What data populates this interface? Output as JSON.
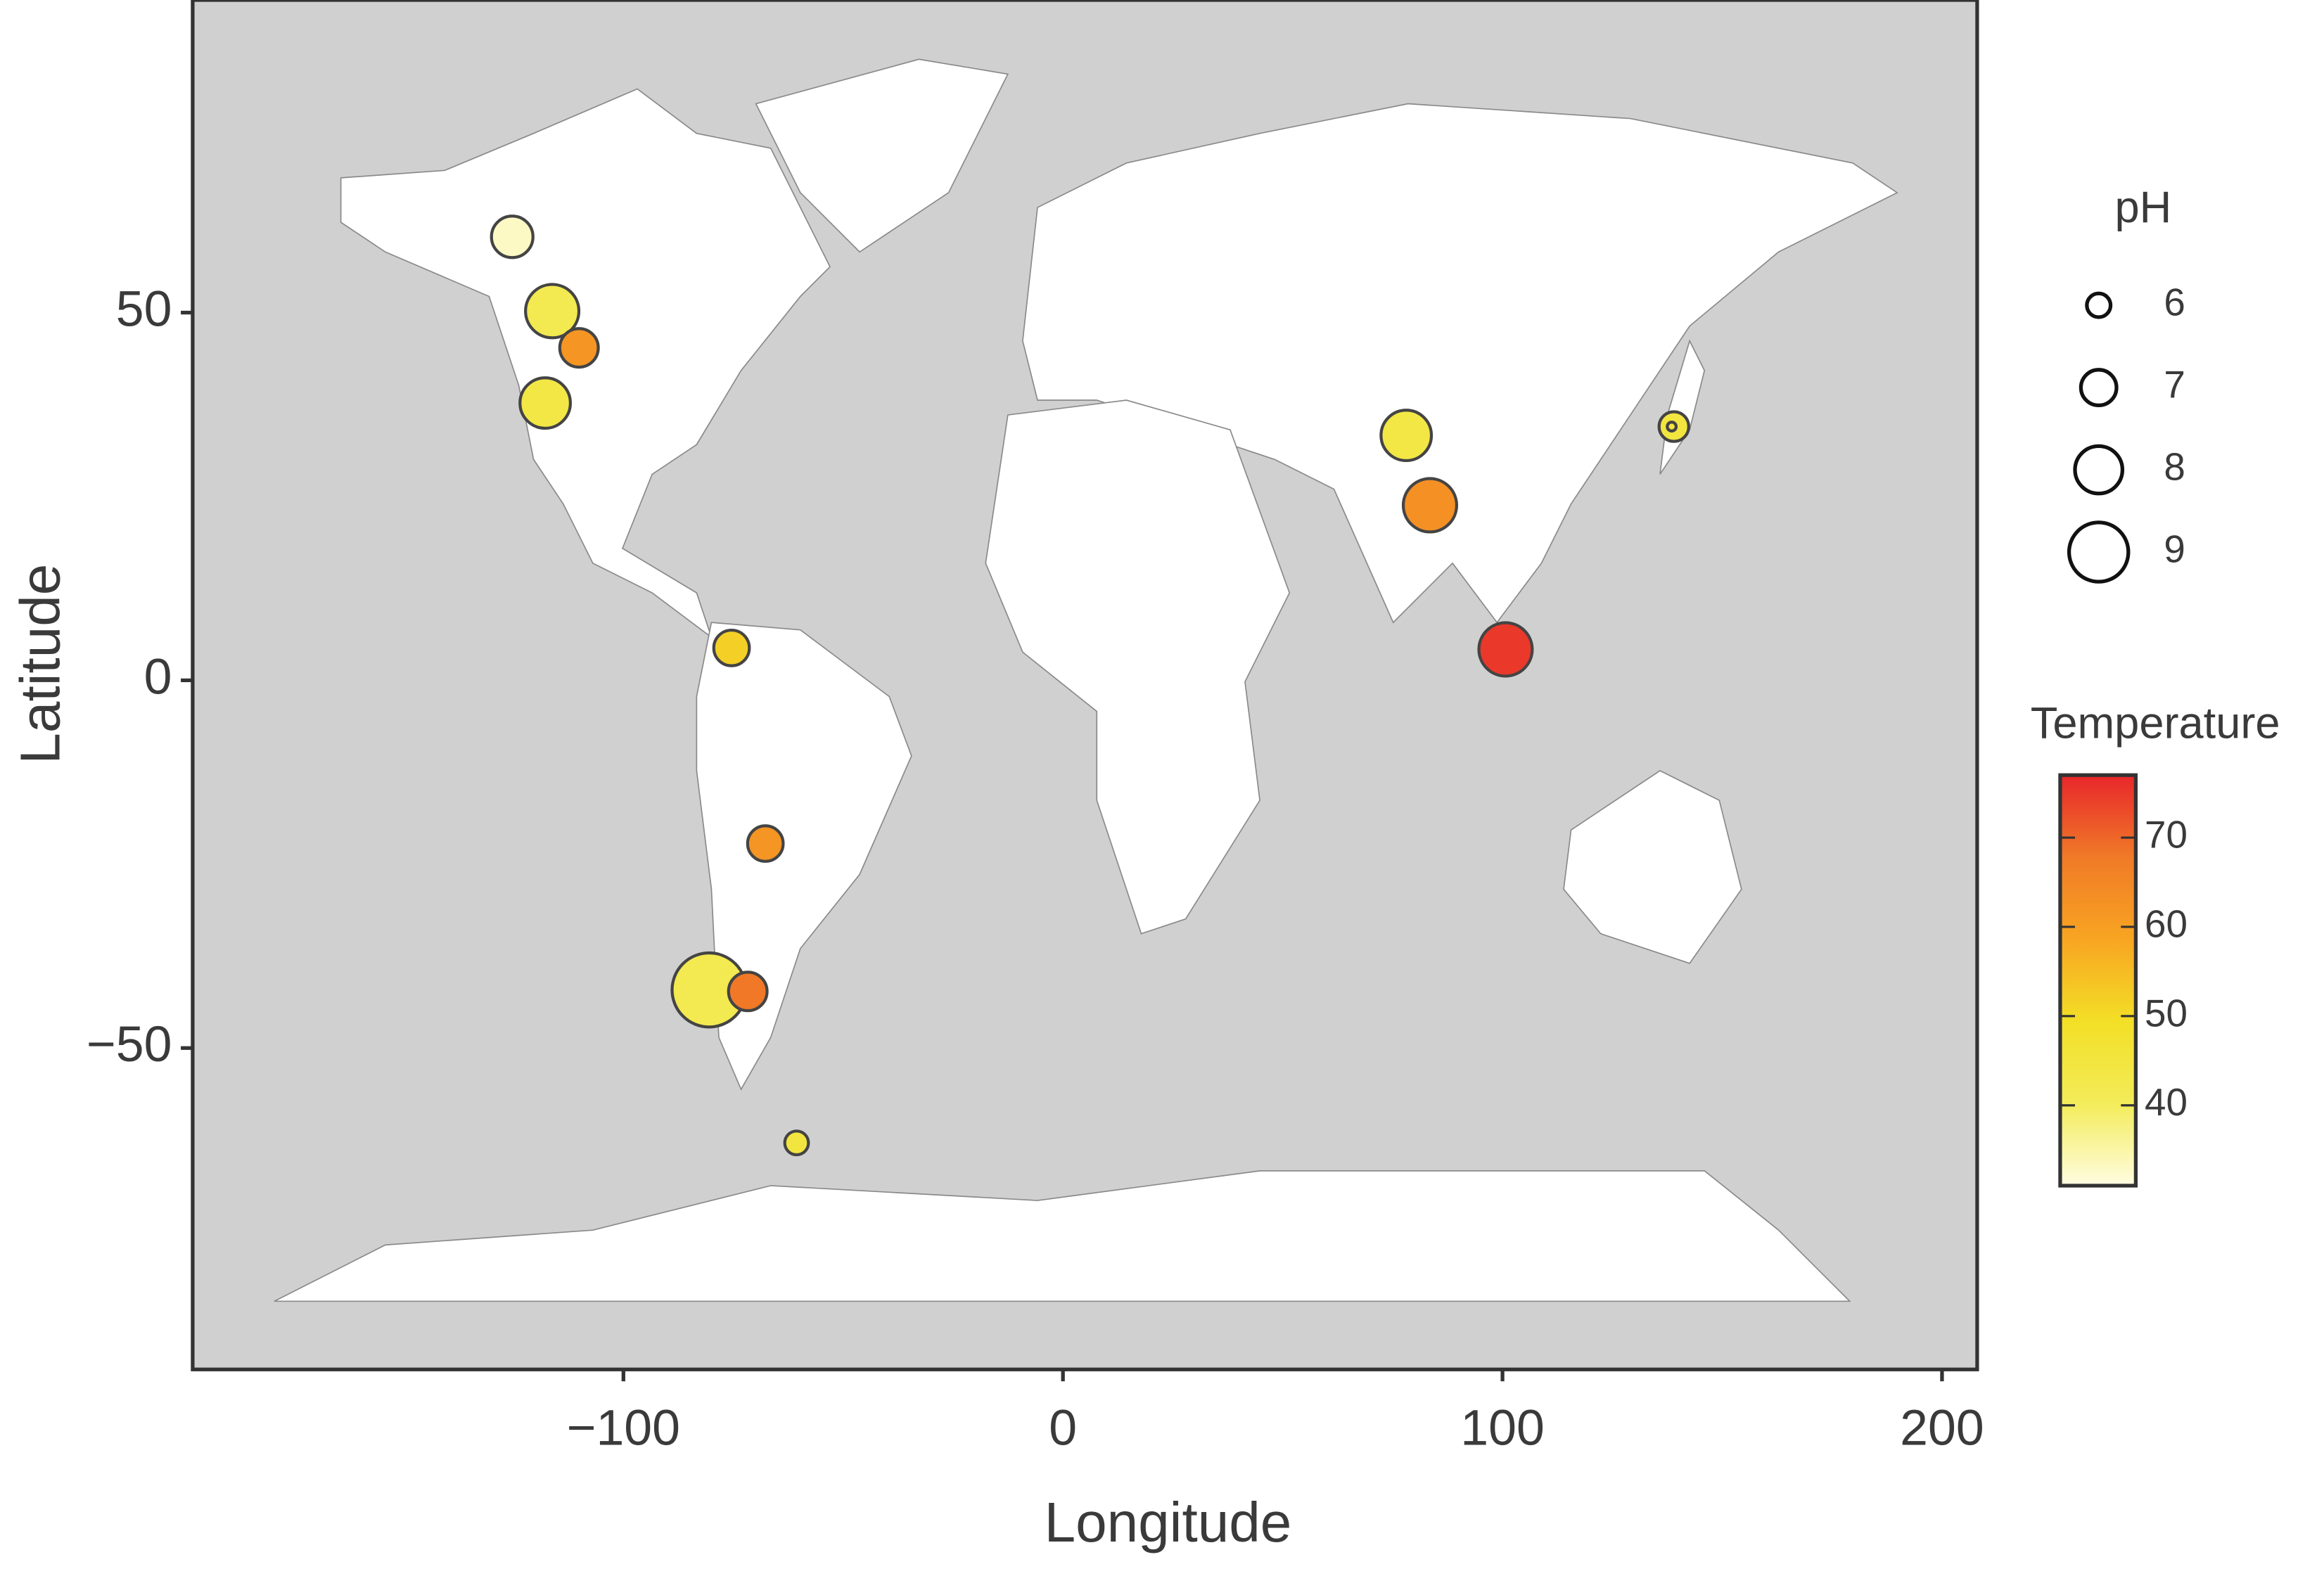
{
  "chart_data": {
    "type": "scatter",
    "xlabel": "Longitude",
    "ylabel": "Latitude",
    "x": [
      -125.3,
      -116.2,
      -110.1,
      -117.8,
      -75.4,
      -67.7,
      -80.5,
      -71.7,
      -60.6,
      78.1,
      83.5,
      100.7,
      139.0,
      138.5
    ],
    "y": [
      60.3,
      50.2,
      45.2,
      37.7,
      4.4,
      -22.2,
      -42.1,
      -42.3,
      -62.9,
      33.3,
      23.8,
      4.2,
      34.5,
      34.5
    ],
    "size": [
      7.5,
      8.5,
      7.25,
      8.25,
      7,
      7,
      10.25,
      7.25,
      6,
      8.25,
      8.5,
      8.5,
      6.5,
      4.75
    ],
    "color_values": [
      33,
      42,
      62,
      44,
      52,
      62,
      42,
      68,
      45,
      44,
      63,
      75,
      45,
      45
    ],
    "xlim": [
      -198,
      208
    ],
    "ylim": [
      -93.7,
      92.5
    ],
    "xticks": [
      {
        "value": -100,
        "label": "−100"
      },
      0,
      100,
      200
    ],
    "yticks": [
      {
        "value": -50,
        "label": "−50"
      },
      0,
      50
    ],
    "size_legend": {
      "title": "pH",
      "values": [
        6,
        7,
        8,
        9
      ]
    },
    "color_legend": {
      "title": "Temperature",
      "lim": [
        31,
        77
      ],
      "ticks": [
        40,
        50,
        60,
        70
      ],
      "colors": [
        "#fffde2",
        "#f3ec5a",
        "#f3df26",
        "#f8a522",
        "#f07a27",
        "#e8262b"
      ]
    }
  }
}
